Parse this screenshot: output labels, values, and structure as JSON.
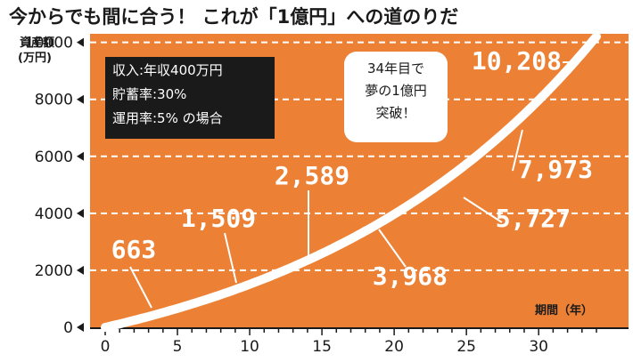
{
  "title": "今からでも間に合う！ これが「1億円」への道のりだ",
  "info_box": [
    "収入:年収400万円",
    "貯蓄率:30%",
    "運用率:5%  の場合"
  ],
  "callout": [
    "34年目で",
    "夢の1億円",
    "突破！"
  ],
  "colors": {
    "plot_bg": "#ec8135",
    "curve": "#ffffff",
    "info_bg": "#1a1a1a",
    "text": "#1a1a1a"
  },
  "chart_data": {
    "type": "line",
    "title": "今からでも間に合う！ これが「1億円」への道のりだ",
    "ylabel": [
      "資産額",
      "(万円)"
    ],
    "xlabel": "期間（年）",
    "xlim": [
      0,
      34
    ],
    "ylim": [
      0,
      10300
    ],
    "xticks": [
      0,
      5,
      10,
      15,
      20,
      25,
      30
    ],
    "yticks": [
      0,
      2000,
      4000,
      6000,
      8000,
      10000
    ],
    "yticks_labels": [
      "0",
      "2000",
      "4000",
      "6000",
      "8000",
      "10000"
    ],
    "grid": "horizontal-dashed",
    "curve_model": {
      "annual_saving": 120,
      "rate": 0.05
    },
    "labels": [
      {
        "x": 5,
        "y": 663,
        "text": "663"
      },
      {
        "x": 10,
        "y": 1509,
        "text": "1,509"
      },
      {
        "x": 15,
        "y": 2589,
        "text": "2,589"
      },
      {
        "x": 20,
        "y": 3968,
        "text": "3,968"
      },
      {
        "x": 25,
        "y": 5727,
        "text": "5,727"
      },
      {
        "x": 30,
        "y": 7973,
        "text": "7,973"
      },
      {
        "x": 34,
        "y": 10208,
        "text": "10,208"
      }
    ]
  }
}
